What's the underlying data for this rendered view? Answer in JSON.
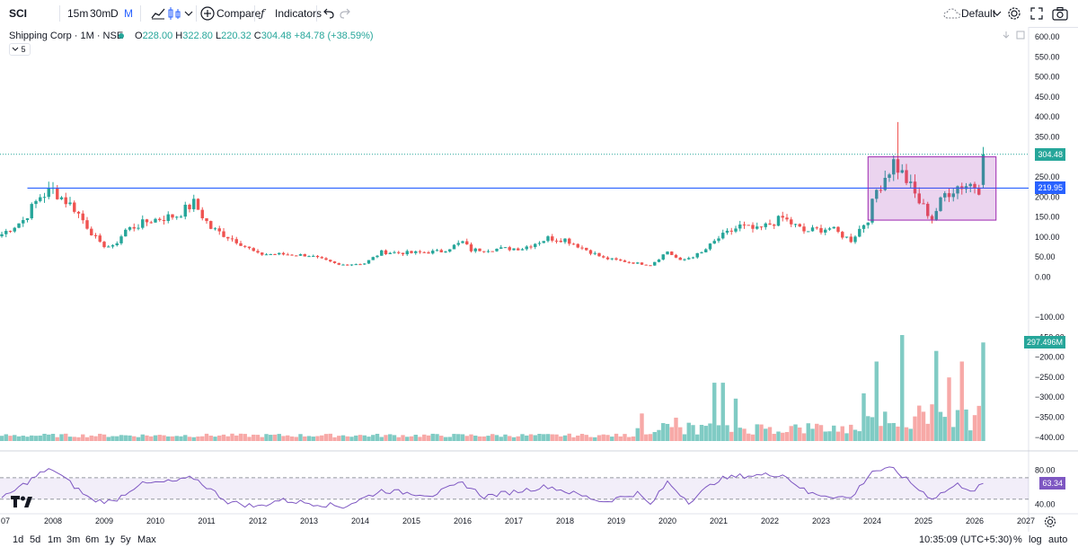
{
  "toolbar": {
    "symbol": "SCI",
    "intervals": [
      "15m",
      "30m",
      "D",
      "M"
    ],
    "active_interval": "M",
    "compare_label": "Compare",
    "indicators_label": "Indicators",
    "layout_label": "Default",
    "icons": [
      "candles-icon",
      "undo-icon",
      "redo-icon",
      "gear-icon",
      "fullscreen-icon",
      "camera-icon"
    ]
  },
  "legend": {
    "title": "Shipping Corp · 1M · NSE",
    "open_label": "O",
    "open": "228.00",
    "high_label": "H",
    "high": "322.80",
    "low_label": "L",
    "low": "220.32",
    "close_label": "C",
    "close": "304.48",
    "change": "+84.78 (+38.59%)",
    "collapse_count": "5",
    "up_color": "#26a69a",
    "down_color": "#ef5350"
  },
  "price_axis": {
    "labels": [
      "600.00",
      "550.00",
      "500.00",
      "450.00",
      "400.00",
      "350.00",
      "300.00",
      "250.00",
      "200.00",
      "150.00",
      "100.00",
      "50.00",
      "0.00",
      "−100.00",
      "−150.00",
      "−200.00",
      "−250.00",
      "−300.00",
      "−350.00",
      "−400.00"
    ],
    "last_price_badge": "304.48",
    "hline_badge": "219.95",
    "volume_badge": "297.496M"
  },
  "rsi_axis": {
    "labels": [
      "80.00",
      "40.00"
    ],
    "rsi_badge": "63.34"
  },
  "time_axis": {
    "labels": [
      "07",
      "2008",
      "2009",
      "2010",
      "2011",
      "2012",
      "2013",
      "2014",
      "2015",
      "2016",
      "2017",
      "2018",
      "2019",
      "2020",
      "2021",
      "2022",
      "2023",
      "2024",
      "2025",
      "2026",
      "2027"
    ]
  },
  "bottom_bar": {
    "ranges": [
      "1d",
      "5d",
      "1m",
      "3m",
      "6m",
      "1y",
      "5y",
      "Max"
    ],
    "clock": "10:35:09 (UTC+5:30)",
    "percent_label": "%",
    "log_label": "log",
    "auto_label": "auto"
  },
  "chart_data": [
    {
      "type": "candlestick",
      "symbol": "SCI",
      "interval": "1M",
      "ylim": [
        -400,
        600
      ],
      "horizontal_line": 219.95,
      "rectangle": {
        "x": [
          "2023-12",
          "2026-06"
        ],
        "y": [
          140,
          298
        ]
      },
      "keypoints": [
        {
          "x": "2007-01",
          "close": 105
        },
        {
          "x": "2007-06",
          "close": 140
        },
        {
          "x": "2007-10",
          "close": 200
        },
        {
          "x": "2008-01",
          "close": 215
        },
        {
          "x": "2008-06",
          "close": 170
        },
        {
          "x": "2008-12",
          "close": 80
        },
        {
          "x": "2009-03",
          "close": 72
        },
        {
          "x": "2009-06",
          "close": 115
        },
        {
          "x": "2009-12",
          "close": 140
        },
        {
          "x": "2010-06",
          "close": 152
        },
        {
          "x": "2010-10",
          "close": 182
        },
        {
          "x": "2011-02",
          "close": 120
        },
        {
          "x": "2011-08",
          "close": 88
        },
        {
          "x": "2012-01",
          "close": 55
        },
        {
          "x": "2012-06",
          "close": 55
        },
        {
          "x": "2013-01",
          "close": 52
        },
        {
          "x": "2013-08",
          "close": 28
        },
        {
          "x": "2014-02",
          "close": 32
        },
        {
          "x": "2014-06",
          "close": 60
        },
        {
          "x": "2015-01",
          "close": 58
        },
        {
          "x": "2015-08",
          "close": 62
        },
        {
          "x": "2016-01",
          "close": 85
        },
        {
          "x": "2016-03",
          "close": 65
        },
        {
          "x": "2016-09",
          "close": 68
        },
        {
          "x": "2017-03",
          "close": 70
        },
        {
          "x": "2017-09",
          "close": 95
        },
        {
          "x": "2018-01",
          "close": 92
        },
        {
          "x": "2018-10",
          "close": 45
        },
        {
          "x": "2019-04",
          "close": 35
        },
        {
          "x": "2019-09",
          "close": 28
        },
        {
          "x": "2020-01",
          "close": 62
        },
        {
          "x": "2020-04",
          "close": 38
        },
        {
          "x": "2020-09",
          "close": 58
        },
        {
          "x": "2021-01",
          "close": 95
        },
        {
          "x": "2021-06",
          "close": 125
        },
        {
          "x": "2021-10",
          "close": 115
        },
        {
          "x": "2022-04",
          "close": 145
        },
        {
          "x": "2022-09",
          "close": 112
        },
        {
          "x": "2023-03",
          "close": 120
        },
        {
          "x": "2023-08",
          "close": 90
        },
        {
          "x": "2023-12",
          "close": 145
        },
        {
          "x": "2024-02",
          "close": 215
        },
        {
          "x": "2024-06",
          "close": 285
        },
        {
          "x": "2024-09",
          "close": 240
        },
        {
          "x": "2024-12",
          "close": 185
        },
        {
          "x": "2025-03",
          "close": 145
        },
        {
          "x": "2025-06",
          "close": 205
        },
        {
          "x": "2025-09",
          "close": 225
        },
        {
          "x": "2025-12",
          "close": 230
        },
        {
          "x": "2026-02",
          "close": 220
        },
        {
          "x": "2026-03",
          "close": 304.48
        }
      ],
      "last_candle": {
        "x": "2026-03",
        "open": 228.0,
        "high": 322.8,
        "low": 220.32,
        "close": 304.48
      },
      "spike_highs": [
        {
          "x": "2008-01",
          "high": 235
        },
        {
          "x": "2024-07",
          "high": 385
        }
      ]
    },
    {
      "type": "bar",
      "name": "Volume",
      "last_value": "297.496M",
      "spikes": [
        {
          "x": "2019-07",
          "value": 0.26
        },
        {
          "x": "2020-03",
          "value": 0.22
        },
        {
          "x": "2020-12",
          "value": 0.55
        },
        {
          "x": "2021-02",
          "value": 0.55
        },
        {
          "x": "2021-05",
          "value": 0.4
        },
        {
          "x": "2023-11",
          "value": 0.45
        },
        {
          "x": "2024-02",
          "value": 0.75
        },
        {
          "x": "2024-08",
          "value": 1.0
        },
        {
          "x": "2025-04",
          "value": 0.85
        },
        {
          "x": "2025-07",
          "value": 0.6
        },
        {
          "x": "2025-10",
          "value": 0.75
        },
        {
          "x": "2026-03",
          "value": 0.93
        }
      ]
    },
    {
      "type": "line",
      "name": "RSI",
      "ylim": [
        30,
        95
      ],
      "bands": [
        70,
        45
      ],
      "last_value": 63.34,
      "keypoints": [
        {
          "x": "2007-01",
          "value": 45
        },
        {
          "x": "2007-10",
          "value": 75
        },
        {
          "x": "2008-01",
          "value": 80
        },
        {
          "x": "2008-10",
          "value": 44
        },
        {
          "x": "2009-03",
          "value": 42
        },
        {
          "x": "2009-09",
          "value": 62
        },
        {
          "x": "2010-06",
          "value": 66
        },
        {
          "x": "2010-10",
          "value": 70
        },
        {
          "x": "2011-06",
          "value": 42
        },
        {
          "x": "2012-01",
          "value": 36
        },
        {
          "x": "2012-06",
          "value": 44
        },
        {
          "x": "2013-06",
          "value": 38
        },
        {
          "x": "2013-09",
          "value": 36
        },
        {
          "x": "2014-06",
          "value": 55
        },
        {
          "x": "2015-06",
          "value": 50
        },
        {
          "x": "2016-01",
          "value": 64
        },
        {
          "x": "2016-06",
          "value": 48
        },
        {
          "x": "2017-09",
          "value": 60
        },
        {
          "x": "2018-10",
          "value": 42
        },
        {
          "x": "2019-06",
          "value": 52
        },
        {
          "x": "2019-09",
          "value": 38
        },
        {
          "x": "2020-01",
          "value": 65
        },
        {
          "x": "2020-06",
          "value": 42
        },
        {
          "x": "2021-01",
          "value": 68
        },
        {
          "x": "2021-06",
          "value": 72
        },
        {
          "x": "2022-04",
          "value": 74
        },
        {
          "x": "2022-10",
          "value": 52
        },
        {
          "x": "2023-08",
          "value": 46
        },
        {
          "x": "2024-01",
          "value": 78
        },
        {
          "x": "2024-06",
          "value": 80
        },
        {
          "x": "2024-12",
          "value": 56
        },
        {
          "x": "2025-03",
          "value": 46
        },
        {
          "x": "2025-09",
          "value": 62
        },
        {
          "x": "2026-01",
          "value": 55
        },
        {
          "x": "2026-03",
          "value": 63.34
        }
      ]
    }
  ]
}
